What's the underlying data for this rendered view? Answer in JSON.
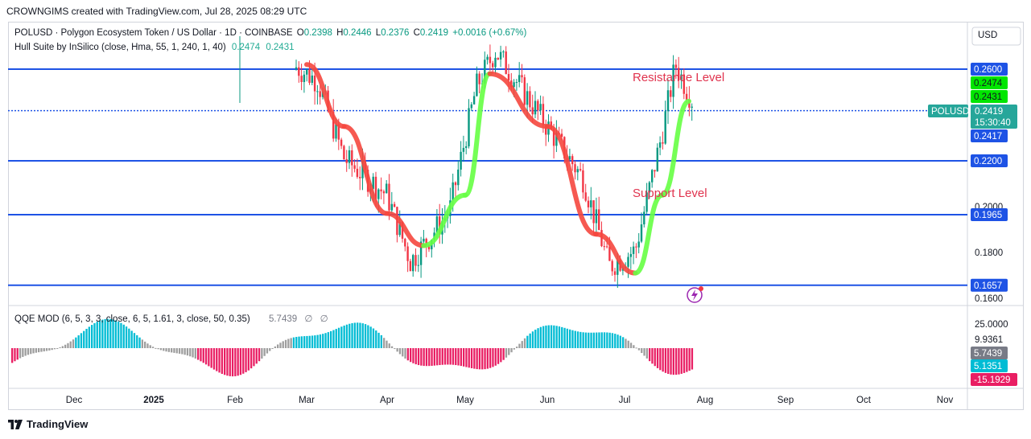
{
  "header": {
    "attribution": "CROWNGIMS created with TradingView.com, Jul 28, 2025 08:29 UTC"
  },
  "legend_main": {
    "symbol": "POLUSD · Polygon Ecosystem Token / US Dollar · 1D · COINBASE",
    "o_label": "O",
    "o_value": "0.2398",
    "h_label": "H",
    "h_value": "0.2446",
    "l_label": "L",
    "l_value": "0.2376",
    "c_label": "C",
    "c_value": "0.2419",
    "change": "+0.0016 (+0.67%)"
  },
  "legend_hull": {
    "label": "Hull Suite by InSilico (close, Hma, 55, 1, 240, 1, 40)",
    "v1": "0.2474",
    "v2": "0.2431"
  },
  "legend_qqe": {
    "label": "QQE MOD (6, 5, 3, 3, close, 6, 5, 1.61, 3, close, 50, 0.35)",
    "value": "5.7439",
    "na1": "∅",
    "na2": "∅"
  },
  "price_axis": {
    "currency": "USD",
    "ticks": [
      {
        "value": 0.26,
        "label": "0.2600"
      },
      {
        "value": 0.22,
        "label": "0.2200"
      },
      {
        "value": 0.2,
        "label": "0.2000"
      },
      {
        "value": 0.1965,
        "label": "0.1965"
      },
      {
        "value": 0.18,
        "label": "0.1800"
      },
      {
        "value": 0.1657,
        "label": "0.1657"
      },
      {
        "value": 0.16,
        "label": "0.1600"
      }
    ],
    "hull_upper_label": "0.2474",
    "hull_lower_label": "0.2431",
    "symbol_tag": "POLUSD",
    "current_price": "0.2419",
    "countdown": "15:30:40",
    "prev_close": "0.2417"
  },
  "qqe_axis": {
    "ticks": [
      {
        "value": 25,
        "label": "25.0000"
      },
      {
        "value": 9.9361,
        "label": "9.9361"
      }
    ],
    "badges": [
      {
        "value": 5.7439,
        "label": "5.7439",
        "color": "#787b86"
      },
      {
        "value": 5.1351,
        "label": "5.1351",
        "color": "#00bcd4"
      },
      {
        "value": -15.1929,
        "label": "-15.1929",
        "color": "#e91e63"
      }
    ]
  },
  "time_axis": [
    "Dec",
    "2025",
    "Feb",
    "Mar",
    "Apr",
    "May",
    "Jun",
    "Jul",
    "Aug",
    "Sep",
    "Oct",
    "Nov"
  ],
  "annotations": {
    "resistance": "Resistance Level",
    "support": "Support Level"
  },
  "colors": {
    "up": "#089981",
    "down": "#f23645",
    "hline": "#1e53e5",
    "hull_up": "#66ff44",
    "hull_down": "#f5473e",
    "qqe_blue": "#00bcd4",
    "qqe_pink": "#e91e63",
    "qqe_gray": "#9e9e9e",
    "annotation": "#e0334e"
  },
  "footer": {
    "brand": "TradingView"
  },
  "chart_data": {
    "type": "candlestick",
    "symbol": "POLUSD",
    "timeframe": "1D",
    "horizontal_levels": [
      0.26,
      0.2419,
      0.22,
      0.1965,
      0.1657
    ],
    "annotations": [
      "Resistance Level",
      "Support Level"
    ],
    "hull_suite": {
      "x": [
        "Mar 1",
        "Mar 15",
        "Apr 1",
        "Apr 15",
        "May 1",
        "May 10",
        "Jun 1",
        "Jun 20",
        "Jul 5",
        "Jul 15",
        "Jul 25"
      ],
      "y": [
        0.262,
        0.235,
        0.197,
        0.183,
        0.205,
        0.258,
        0.235,
        0.188,
        0.171,
        0.205,
        0.246
      ]
    },
    "close_approx": {
      "x": [
        "Feb 25",
        "Mar 5",
        "Mar 15",
        "Apr 1",
        "Apr 10",
        "Apr 25",
        "May 5",
        "May 12",
        "Jun 1",
        "Jun 15",
        "Jun 25",
        "Jul 5",
        "Jul 15",
        "Jul 20",
        "Jul 28"
      ],
      "y": [
        0.262,
        0.255,
        0.221,
        0.205,
        0.176,
        0.198,
        0.252,
        0.268,
        0.235,
        0.212,
        0.174,
        0.181,
        0.232,
        0.262,
        0.2419
      ]
    },
    "qqe": {
      "current": 5.7439,
      "ticks": [
        25,
        9.9361
      ]
    },
    "x_ticks": [
      "Dec",
      "2025",
      "Feb",
      "Mar",
      "Apr",
      "May",
      "Jun",
      "Jul",
      "Aug",
      "Sep",
      "Oct",
      "Nov"
    ],
    "ylim": [
      0.158,
      0.282
    ]
  }
}
